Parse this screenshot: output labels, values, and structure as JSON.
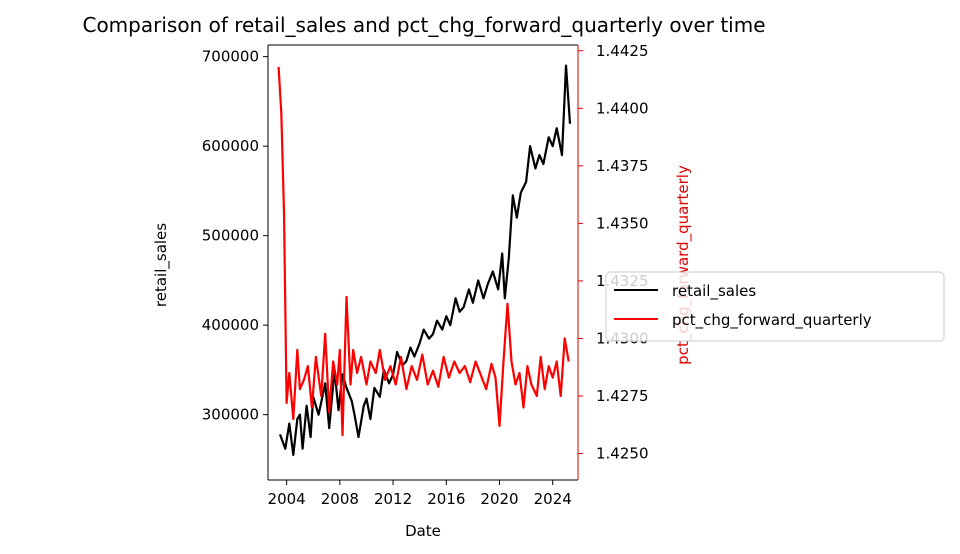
{
  "chart_data": {
    "type": "line",
    "title": "Comparison of retail_sales and pct_chg_forward_quarterly over time",
    "xlabel": "Date",
    "ylabel_left": "retail_sales",
    "ylabel_right": "pct_chg_forward_quarterly",
    "x_ticks": [
      "2004",
      "2008",
      "2012",
      "2016",
      "2020",
      "2024"
    ],
    "x_tick_values": [
      2004,
      2008,
      2012,
      2016,
      2020,
      2024
    ],
    "xlim": [
      2002.6,
      2025.9
    ],
    "ylim_left": [
      227000,
      713000
    ],
    "ylim_right": [
      1.42385,
      1.44275
    ],
    "y_ticks_left": [
      "300000",
      "400000",
      "500000",
      "600000",
      "700000"
    ],
    "y_tick_values_left": [
      300000,
      400000,
      500000,
      600000,
      700000
    ],
    "y_ticks_right": [
      "1.4250",
      "1.4275",
      "1.4300",
      "1.4325",
      "1.4350",
      "1.4375",
      "1.4400",
      "1.4425"
    ],
    "y_tick_values_right": [
      1.425,
      1.4275,
      1.43,
      1.4325,
      1.435,
      1.4375,
      1.44,
      1.4425
    ],
    "legend": {
      "placement": "right-outside",
      "entries": [
        "retail_sales",
        "pct_chg_forward_quarterly"
      ]
    },
    "colors": {
      "retail_sales": "#000000",
      "pct_chg_forward_quarterly": "#ff0000"
    },
    "grid": false,
    "series": [
      {
        "name": "retail_sales",
        "axis": "left",
        "color": "#000000",
        "x": [
          2003.5,
          2003.9,
          2004.2,
          2004.5,
          2004.8,
          2005.0,
          2005.2,
          2005.5,
          2005.8,
          2006.0,
          2006.4,
          2006.9,
          2007.2,
          2007.6,
          2007.9,
          2008.2,
          2008.5,
          2008.9,
          2009.1,
          2009.4,
          2009.8,
          2010.0,
          2010.3,
          2010.6,
          2011.0,
          2011.3,
          2011.7,
          2012.0,
          2012.3,
          2012.7,
          2013.0,
          2013.3,
          2013.6,
          2014.0,
          2014.3,
          2014.7,
          2015.0,
          2015.3,
          2015.7,
          2016.0,
          2016.3,
          2016.7,
          2017.0,
          2017.3,
          2017.7,
          2018.0,
          2018.4,
          2018.8,
          2019.1,
          2019.5,
          2019.9,
          2020.2,
          2020.4,
          2020.7,
          2021.0,
          2021.3,
          2021.6,
          2022.0,
          2022.3,
          2022.7,
          2023.0,
          2023.3,
          2023.7,
          2024.0,
          2024.3,
          2024.7,
          2025.0,
          2025.3
        ],
        "values": [
          278000,
          262000,
          290000,
          255000,
          295000,
          300000,
          262000,
          310000,
          275000,
          320000,
          300000,
          335000,
          285000,
          350000,
          305000,
          345000,
          330000,
          315000,
          300000,
          275000,
          310000,
          318000,
          295000,
          330000,
          320000,
          350000,
          335000,
          345000,
          370000,
          355000,
          360000,
          375000,
          365000,
          380000,
          395000,
          385000,
          390000,
          405000,
          395000,
          410000,
          400000,
          430000,
          415000,
          420000,
          440000,
          425000,
          450000,
          430000,
          445000,
          460000,
          440000,
          480000,
          430000,
          475000,
          545000,
          520000,
          548000,
          560000,
          600000,
          575000,
          590000,
          580000,
          610000,
          600000,
          620000,
          590000,
          690000,
          625000
        ]
      },
      {
        "name": "pct_chg_forward_quarterly",
        "axis": "right",
        "color": "#ff0000",
        "x": [
          2003.4,
          2003.6,
          2003.8,
          2004.0,
          2004.2,
          2004.5,
          2004.8,
          2005.0,
          2005.3,
          2005.6,
          2005.9,
          2006.2,
          2006.6,
          2006.9,
          2007.2,
          2007.5,
          2007.8,
          2008.0,
          2008.2,
          2008.5,
          2008.8,
          2009.0,
          2009.3,
          2009.6,
          2010.0,
          2010.3,
          2010.7,
          2011.0,
          2011.4,
          2011.8,
          2012.2,
          2012.6,
          2013.0,
          2013.4,
          2013.8,
          2014.2,
          2014.6,
          2015.0,
          2015.4,
          2015.8,
          2016.2,
          2016.6,
          2017.0,
          2017.4,
          2017.8,
          2018.2,
          2018.6,
          2019.0,
          2019.4,
          2019.7,
          2020.0,
          2020.3,
          2020.6,
          2020.9,
          2021.2,
          2021.5,
          2021.8,
          2022.1,
          2022.4,
          2022.8,
          2023.1,
          2023.4,
          2023.7,
          2024.0,
          2024.3,
          2024.6,
          2024.9,
          2025.2
        ],
        "values": [
          1.4418,
          1.4398,
          1.4355,
          1.4272,
          1.4285,
          1.4265,
          1.4295,
          1.4278,
          1.4282,
          1.4288,
          1.427,
          1.4292,
          1.4275,
          1.4302,
          1.4268,
          1.429,
          1.428,
          1.4295,
          1.4258,
          1.4318,
          1.428,
          1.4295,
          1.4285,
          1.4292,
          1.428,
          1.429,
          1.4285,
          1.4295,
          1.4282,
          1.4288,
          1.428,
          1.4292,
          1.4278,
          1.4288,
          1.4282,
          1.4293,
          1.428,
          1.4286,
          1.4279,
          1.4292,
          1.4283,
          1.429,
          1.4285,
          1.4288,
          1.4281,
          1.429,
          1.4284,
          1.4278,
          1.4289,
          1.4283,
          1.4262,
          1.429,
          1.4315,
          1.429,
          1.428,
          1.4285,
          1.427,
          1.4288,
          1.428,
          1.4275,
          1.4292,
          1.4278,
          1.4288,
          1.4283,
          1.429,
          1.4275,
          1.43,
          1.429
        ]
      }
    ]
  }
}
